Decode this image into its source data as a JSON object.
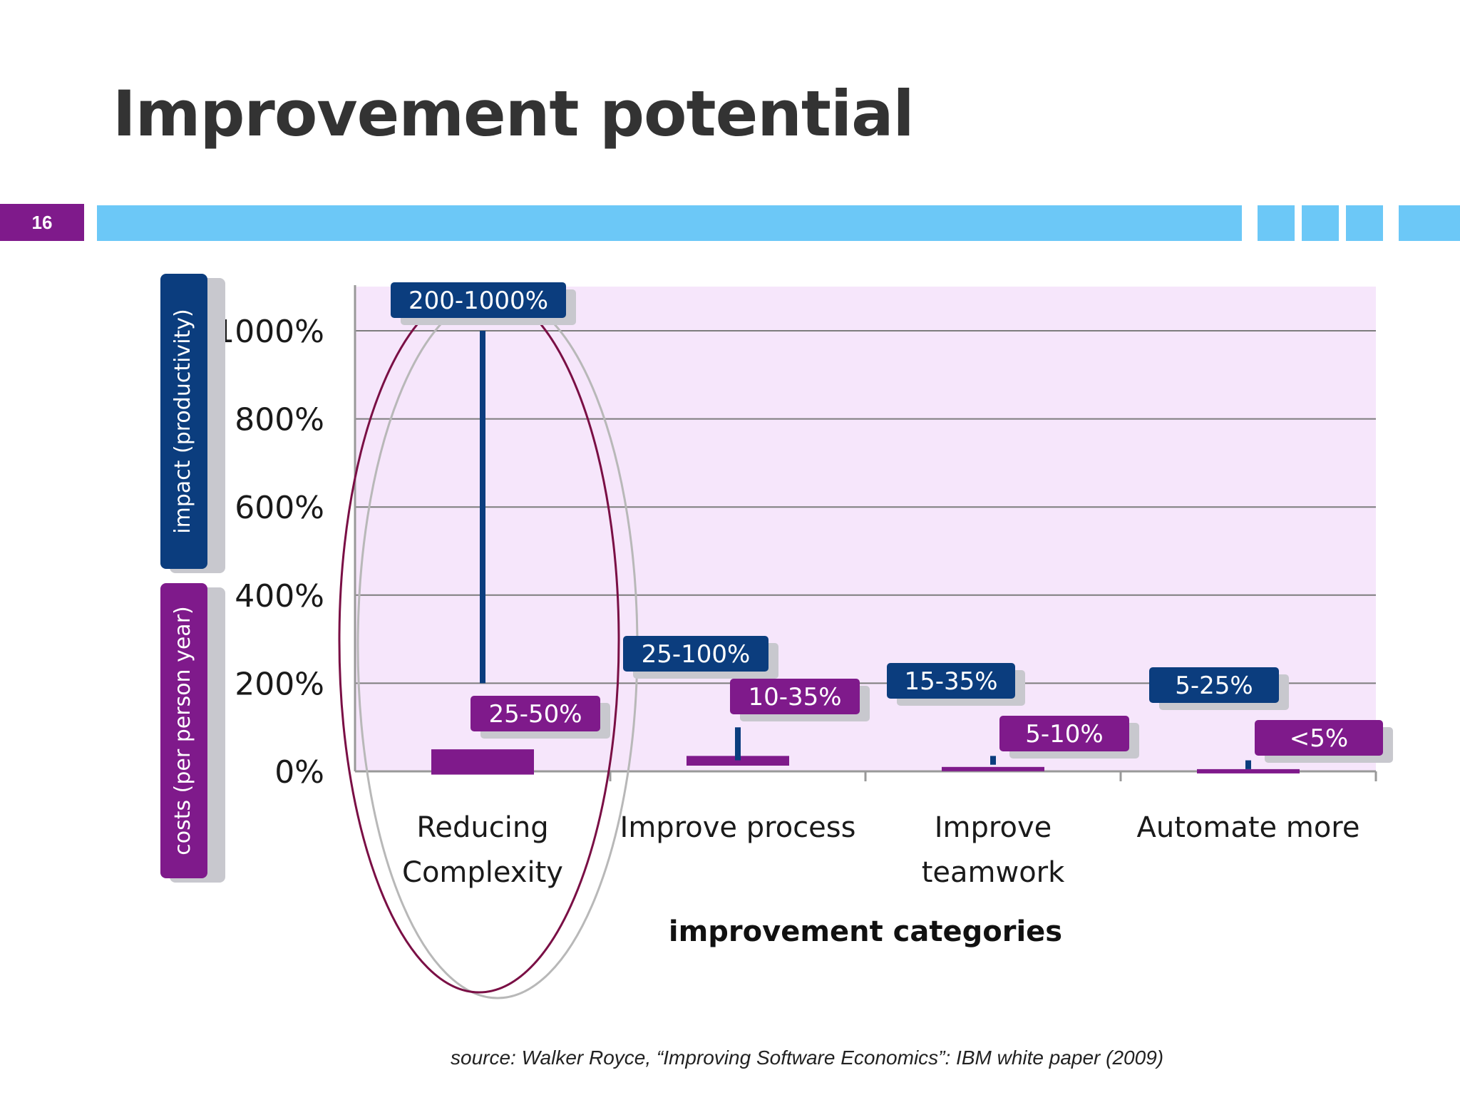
{
  "slide": {
    "title": "Improvement potential",
    "number": "16",
    "source": "source: Walker Royce, “Improving Software Economics”: IBM white paper (2009)"
  },
  "colors": {
    "impact": "#0b3d7e",
    "costs": "#7f1a8b",
    "plot_background": "#f6e6fb",
    "accent_band": "#6cc8f7",
    "ellipse": "#7a0f45"
  },
  "annotation": "ellipse highlighting Reducing Complexity",
  "chart_data": {
    "type": "bar",
    "xlabel": "improvement categories",
    "ylabel_impact": "impact (productivity)",
    "ylabel_costs": "costs (per person year)",
    "ylim": [
      0,
      1000
    ],
    "yticks": [
      0,
      200,
      400,
      600,
      800,
      1000
    ],
    "ytick_labels": [
      "0%",
      "200%",
      "400%",
      "600%",
      "800%",
      "1000%"
    ],
    "grid": true,
    "categories": [
      {
        "lines": [
          "Reducing",
          "Complexity"
        ]
      },
      {
        "lines": [
          "Improve process"
        ]
      },
      {
        "lines": [
          "Improve",
          "teamwork"
        ]
      },
      {
        "lines": [
          "Automate more"
        ]
      }
    ],
    "series": [
      {
        "name": "impact (productivity)",
        "ranges": [
          [
            200,
            1000
          ],
          [
            25,
            100
          ],
          [
            15,
            35
          ],
          [
            5,
            25
          ]
        ],
        "labels": [
          "200-1000%",
          "25-100%",
          "15-35%",
          "5-25%"
        ]
      },
      {
        "name": "costs (per person year)",
        "ranges": [
          [
            25,
            50
          ],
          [
            10,
            35
          ],
          [
            5,
            10
          ],
          [
            0,
            5
          ]
        ],
        "labels": [
          "25-50%",
          "10-35%",
          "5-10%",
          "<5%"
        ]
      }
    ]
  }
}
